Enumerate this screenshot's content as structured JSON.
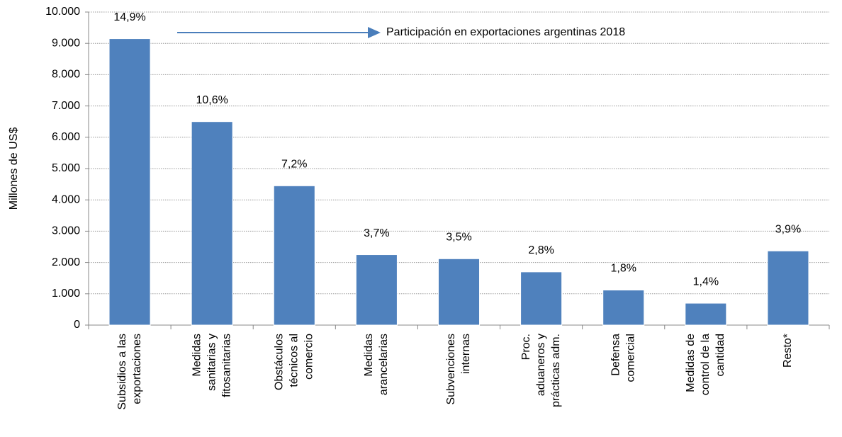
{
  "chart_data": {
    "type": "bar",
    "y_label": "Millones de US$",
    "annotation": "Participación en exportaciones argentinas 2018",
    "categories": [
      [
        "Subsidios a las",
        "exportaciones"
      ],
      [
        "Medidas",
        "sanitarias y",
        "fitosanitarias"
      ],
      [
        "Obstáculos",
        "técnicos al",
        "comercio"
      ],
      [
        "Medidas",
        "arancelarias"
      ],
      [
        "Subvenciones",
        "internas"
      ],
      [
        "Proc.",
        "aduaneros y",
        "prácticas adm."
      ],
      [
        "Defensa",
        "comercial"
      ],
      [
        "Medidas de",
        "control de la",
        "cantidad"
      ],
      [
        "Resto*"
      ]
    ],
    "values": [
      9150,
      6500,
      4450,
      2250,
      2120,
      1700,
      1120,
      700,
      2370
    ],
    "data_labels": [
      "14,9%",
      "10,6%",
      "7,2%",
      "3,7%",
      "3,5%",
      "2,8%",
      "1,8%",
      "1,4%",
      "3,9%"
    ],
    "color": "#4f81bd",
    "ylim": [
      0,
      10000
    ],
    "yticks": [
      0,
      {
        "value": 1000,
        "label": "1.000"
      },
      {
        "value": 2000,
        "label": "2.000"
      },
      {
        "value": 3000,
        "label": "3.000"
      },
      {
        "value": 4000,
        "label": "4.000"
      },
      {
        "value": 5000,
        "label": "5.000"
      },
      {
        "value": 6000,
        "label": "6.000"
      },
      {
        "value": 7000,
        "label": "7.000"
      },
      {
        "value": 8000,
        "label": "8.000"
      },
      {
        "value": 9000,
        "label": "9.000"
      },
      {
        "value": 10000,
        "label": "10.000"
      }
    ],
    "grid": true
  }
}
